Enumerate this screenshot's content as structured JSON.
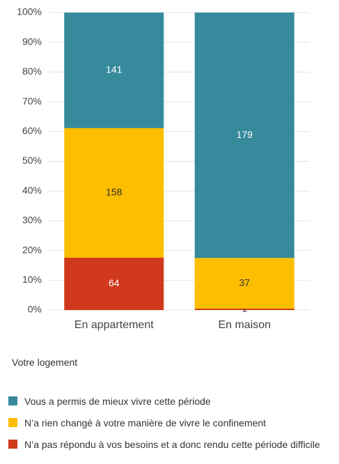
{
  "chart_data": {
    "type": "bar",
    "stacking": "percent",
    "categories": [
      "En appartement",
      "En maison"
    ],
    "series": [
      {
        "name": "N’a pas répondu à vos besoins et a donc rendu cette période difficile",
        "color": "#d0391b",
        "values": [
          64,
          1
        ]
      },
      {
        "name": "N’a rien changé à votre manière de vivre le confinement",
        "color": "#fdbe00",
        "values": [
          158,
          37
        ]
      },
      {
        "name": "Vous a permis de mieux vivre cette période",
        "color": "#368a9b",
        "values": [
          141,
          179
        ]
      }
    ],
    "ylim": [
      0,
      100
    ],
    "yticks": [
      {
        "value": 0,
        "label": "0%"
      },
      {
        "value": 10,
        "label": "10%"
      },
      {
        "value": 20,
        "label": "20%"
      },
      {
        "value": 30,
        "label": "30%"
      },
      {
        "value": 40,
        "label": "40%"
      },
      {
        "value": 50,
        "label": "50%"
      },
      {
        "value": 60,
        "label": "60%"
      },
      {
        "value": 70,
        "label": "70%"
      },
      {
        "value": 80,
        "label": "80%"
      },
      {
        "value": 90,
        "label": "90%"
      },
      {
        "value": 100,
        "label": "100%"
      }
    ],
    "grid": true,
    "legend_title": "Votre logement",
    "legend_position": "bottom"
  }
}
